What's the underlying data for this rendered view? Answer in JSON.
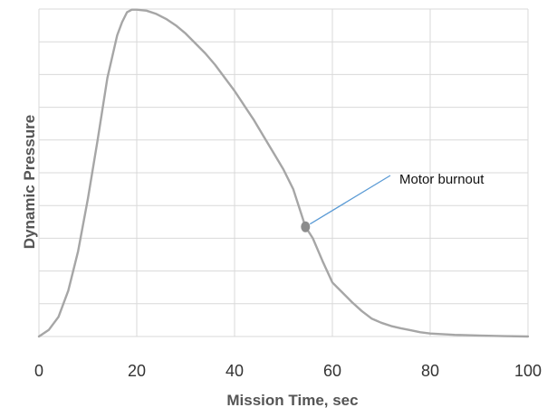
{
  "chart_data": {
    "type": "line",
    "title": "",
    "xlabel": "Mission Time, sec",
    "ylabel": "Dynamic Pressure",
    "xlim": [
      0,
      100
    ],
    "ylim": [
      0,
      1.0
    ],
    "x_ticks": [
      0,
      20,
      40,
      60,
      80,
      100
    ],
    "x_tick_labels": [
      "0",
      "20",
      "40",
      "60",
      "80",
      "100"
    ],
    "y_gridlines": [
      0,
      0.1,
      0.2,
      0.3,
      0.4,
      0.5,
      0.6,
      0.7,
      0.8,
      0.9,
      1.0
    ],
    "y_tick_labels_shown": false,
    "grid": true,
    "legend": "none",
    "series_color": "#a6a6a6",
    "series": [
      {
        "x": [
          0,
          2,
          4,
          6,
          8,
          10,
          12,
          14,
          16,
          17,
          18,
          19,
          20,
          22,
          24,
          26,
          28,
          30,
          32,
          34,
          36,
          38,
          40,
          42,
          44,
          46,
          48,
          50,
          52,
          54.5,
          56,
          58,
          60,
          62,
          64,
          66,
          68,
          70,
          72,
          74,
          76,
          78,
          80,
          85,
          90,
          95,
          100
        ],
        "y": [
          0,
          0.02,
          0.06,
          0.14,
          0.26,
          0.42,
          0.6,
          0.79,
          0.92,
          0.96,
          0.99,
          0.998,
          0.998,
          0.995,
          0.985,
          0.97,
          0.95,
          0.925,
          0.895,
          0.865,
          0.83,
          0.79,
          0.75,
          0.705,
          0.66,
          0.61,
          0.56,
          0.51,
          0.45,
          0.335,
          0.3,
          0.23,
          0.165,
          0.135,
          0.105,
          0.078,
          0.055,
          0.042,
          0.032,
          0.025,
          0.019,
          0.013,
          0.009,
          0.005,
          0.003,
          0.001,
          0
        ]
      }
    ],
    "annotations": [
      {
        "text": "Motor burnout",
        "x": 54.5,
        "y": 0.335,
        "marker_color": "#8c8c8c",
        "leader_color": "#5b9bd5"
      }
    ]
  }
}
